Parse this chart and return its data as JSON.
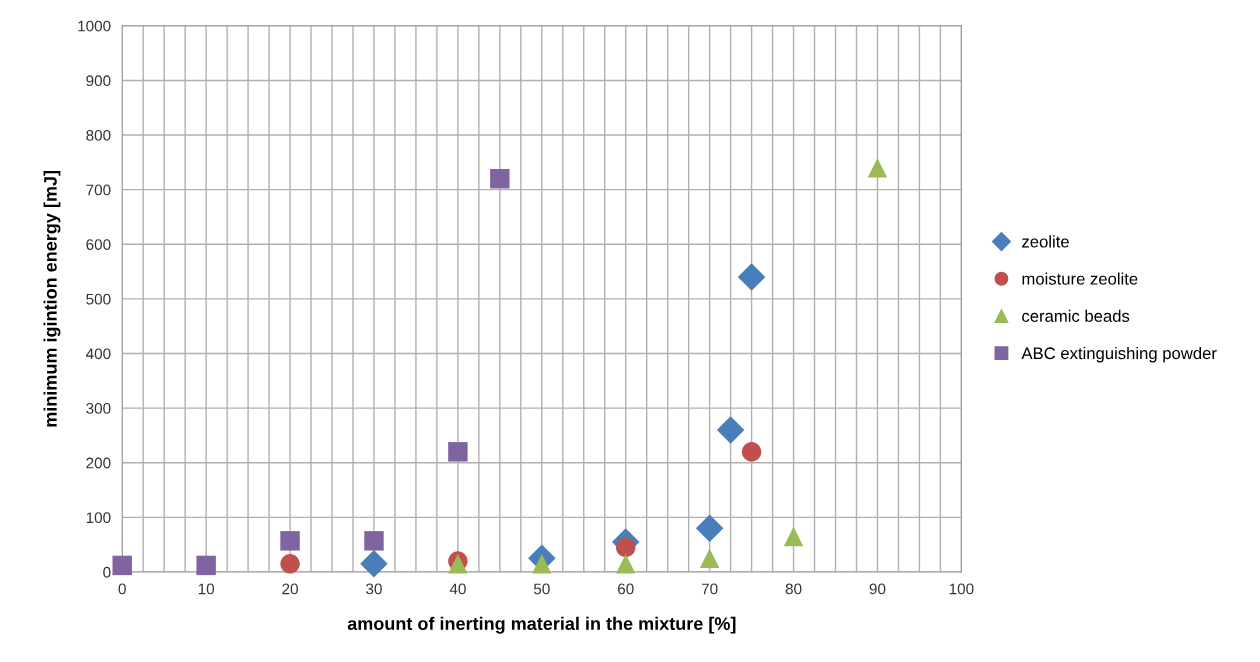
{
  "chart_data": {
    "type": "scatter",
    "xlabel": "amount of inerting material in the mixture [%]",
    "ylabel": "minimum igintion energy [mJ]",
    "xlim": [
      0,
      100
    ],
    "ylim": [
      0,
      1000
    ],
    "xticks": [
      0,
      {
        "value": 2.5,
        "label": null
      },
      {
        "value": 5,
        "label": null
      },
      {
        "value": 7.5,
        "label": null
      },
      10,
      {
        "value": 12.5,
        "label": null
      },
      {
        "value": 15,
        "label": null
      },
      {
        "value": 17.5,
        "label": null
      },
      20,
      {
        "value": 22.5,
        "label": null
      },
      {
        "value": 25,
        "label": null
      },
      {
        "value": 27.5,
        "label": null
      },
      30,
      {
        "value": 32.5,
        "label": null
      },
      {
        "value": 35,
        "label": null
      },
      {
        "value": 37.5,
        "label": null
      },
      40,
      {
        "value": 42.5,
        "label": null
      },
      {
        "value": 45,
        "label": null
      },
      {
        "value": 47.5,
        "label": null
      },
      50,
      {
        "value": 52.5,
        "label": null
      },
      {
        "value": 55,
        "label": null
      },
      {
        "value": 57.5,
        "label": null
      },
      60,
      {
        "value": 62.5,
        "label": null
      },
      {
        "value": 65,
        "label": null
      },
      {
        "value": 67.5,
        "label": null
      },
      70,
      {
        "value": 72.5,
        "label": null
      },
      {
        "value": 75,
        "label": null
      },
      {
        "value": 77.5,
        "label": null
      },
      80,
      {
        "value": 82.5,
        "label": null
      },
      {
        "value": 85,
        "label": null
      },
      {
        "value": 87.5,
        "label": null
      },
      90,
      {
        "value": 92.5,
        "label": null
      },
      {
        "value": 95,
        "label": null
      },
      {
        "value": 97.5,
        "label": null
      },
      100
    ],
    "yticks": [
      0,
      100,
      200,
      300,
      400,
      500,
      600,
      700,
      800,
      900,
      1000
    ],
    "grid": true,
    "legend": "right",
    "series": [
      {
        "name": "zeolite",
        "color": "#4a7ebb",
        "marker": "diamond",
        "x": [
          30,
          50,
          60,
          70,
          72.5,
          75
        ],
        "values": [
          15,
          25,
          55,
          80,
          260,
          540
        ]
      },
      {
        "name": "moisture zeolite",
        "color": "#c0504d",
        "marker": "circle",
        "x": [
          20,
          40,
          60,
          75
        ],
        "values": [
          15,
          20,
          45,
          220
        ]
      },
      {
        "name": "ceramic beads",
        "color": "#9bbb59",
        "marker": "triangle",
        "x": [
          40,
          50,
          60,
          70,
          80,
          90
        ],
        "values": [
          15,
          15,
          15,
          25,
          65,
          740
        ]
      },
      {
        "name": "ABC extinguishing powder",
        "color": "#8064a2",
        "marker": "square",
        "x": [
          0,
          10,
          20,
          30,
          40,
          45
        ],
        "values": [
          12,
          12,
          57,
          57,
          220,
          720
        ]
      }
    ]
  }
}
